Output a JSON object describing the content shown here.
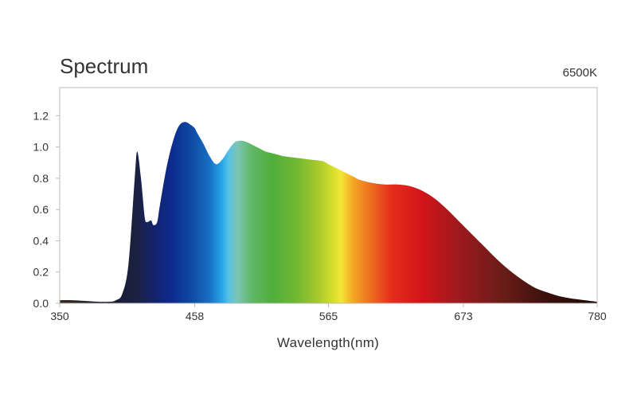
{
  "chart_data": {
    "type": "area",
    "title": "Spectrum",
    "annotation": "6500K",
    "xlabel": "Wavelength(nm)",
    "ylabel": "",
    "xlim": [
      350,
      780
    ],
    "ylim": [
      0,
      1.38
    ],
    "x_ticks": [
      "350",
      "458",
      "565",
      "673",
      "780"
    ],
    "y_ticks": [
      "0.0",
      "0.2",
      "0.4",
      "0.6",
      "0.8",
      "1.0",
      "1.2"
    ],
    "grid": false,
    "series": [
      {
        "x": [
          350,
          360,
          370,
          380,
          390,
          395,
          400,
          405,
          410,
          412,
          415,
          418,
          420,
          423,
          425,
          428,
          430,
          435,
          440,
          445,
          450,
          455,
          458,
          460,
          465,
          470,
          475,
          480,
          485,
          490,
          495,
          500,
          505,
          510,
          515,
          520,
          525,
          530,
          540,
          550,
          560,
          565,
          570,
          575,
          580,
          585,
          590,
          600,
          610,
          620,
          630,
          640,
          650,
          660,
          670,
          680,
          690,
          700,
          710,
          720,
          730,
          740,
          750,
          760,
          770,
          780
        ],
        "y": [
          0.02,
          0.02,
          0.015,
          0.01,
          0.01,
          0.02,
          0.06,
          0.25,
          0.8,
          0.97,
          0.8,
          0.55,
          0.52,
          0.53,
          0.5,
          0.52,
          0.62,
          0.85,
          1.02,
          1.13,
          1.16,
          1.14,
          1.12,
          1.09,
          1.02,
          0.94,
          0.89,
          0.92,
          0.98,
          1.03,
          1.04,
          1.03,
          1.01,
          0.99,
          0.97,
          0.96,
          0.95,
          0.94,
          0.93,
          0.92,
          0.91,
          0.89,
          0.87,
          0.85,
          0.83,
          0.81,
          0.79,
          0.77,
          0.76,
          0.76,
          0.75,
          0.72,
          0.67,
          0.6,
          0.52,
          0.44,
          0.36,
          0.28,
          0.21,
          0.15,
          0.1,
          0.07,
          0.045,
          0.03,
          0.02,
          0.01
        ]
      }
    ],
    "gradient_stops": [
      {
        "x": 350,
        "color": "#3a2a1e"
      },
      {
        "x": 385,
        "color": "#1a1a2e"
      },
      {
        "x": 412,
        "color": "#1b2142"
      },
      {
        "x": 425,
        "color": "#13226b"
      },
      {
        "x": 440,
        "color": "#0d2c8f"
      },
      {
        "x": 455,
        "color": "#0e49a3"
      },
      {
        "x": 470,
        "color": "#1770c4"
      },
      {
        "x": 480,
        "color": "#2aa6ea"
      },
      {
        "x": 485,
        "color": "#55c2e6"
      },
      {
        "x": 492,
        "color": "#7cc4b6"
      },
      {
        "x": 503,
        "color": "#62b86a"
      },
      {
        "x": 520,
        "color": "#4fae3a"
      },
      {
        "x": 540,
        "color": "#72b832"
      },
      {
        "x": 555,
        "color": "#a2c72c"
      },
      {
        "x": 568,
        "color": "#d3dd2a"
      },
      {
        "x": 575,
        "color": "#f4e637"
      },
      {
        "x": 585,
        "color": "#f3a524"
      },
      {
        "x": 600,
        "color": "#ec6a1e"
      },
      {
        "x": 615,
        "color": "#e52e1b"
      },
      {
        "x": 640,
        "color": "#d21419"
      },
      {
        "x": 670,
        "color": "#9b1a1e"
      },
      {
        "x": 705,
        "color": "#6a1c17"
      },
      {
        "x": 740,
        "color": "#3a100d"
      },
      {
        "x": 780,
        "color": "#1d0906"
      }
    ],
    "colors": {
      "axis": "#bdbdbd",
      "text": "#333333"
    }
  }
}
